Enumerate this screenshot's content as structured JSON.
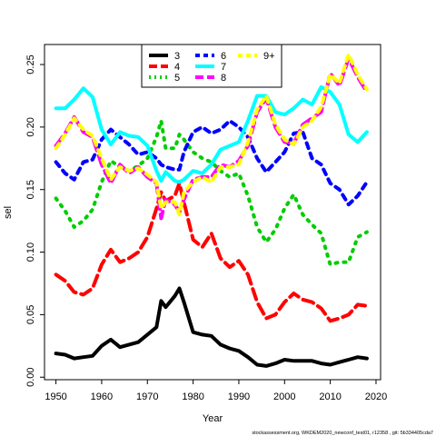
{
  "chart_data": {
    "type": "line",
    "title": "",
    "xlabel": "Year",
    "ylabel": "sel",
    "xlim": [
      1947.5,
      2021
    ],
    "ylim": [
      -0.002,
      0.266
    ],
    "xticks": [
      "1950",
      "1960",
      "1970",
      "1980",
      "1990",
      "2000",
      "2010",
      "2020"
    ],
    "yticks": [
      "0.00",
      "0.05",
      "0.10",
      "0.15",
      "0.20",
      "0.25"
    ],
    "grid": false,
    "legend_position": "top-center",
    "footnote": "stockassessment.org, WKDEM2020_newconf_test01, r12358 , git: 5b334405cda7",
    "series": [
      {
        "name": "3",
        "color": "#000000",
        "dash": "solid",
        "x": [
          1950,
          1952,
          1954,
          1956,
          1958,
          1960,
          1962,
          1964,
          1966,
          1968,
          1970,
          1972,
          1973,
          1974,
          1976,
          1977,
          1978,
          1980,
          1982,
          1984,
          1986,
          1988,
          1990,
          1992,
          1994,
          1996,
          1998,
          2000,
          2002,
          2004,
          2006,
          2008,
          2010,
          2012,
          2014,
          2016,
          2018
        ],
        "y": [
          0.019,
          0.018,
          0.015,
          0.016,
          0.017,
          0.025,
          0.03,
          0.024,
          0.026,
          0.028,
          0.034,
          0.04,
          0.061,
          0.056,
          0.065,
          0.071,
          0.06,
          0.036,
          0.034,
          0.033,
          0.026,
          0.023,
          0.021,
          0.016,
          0.01,
          0.009,
          0.011,
          0.014,
          0.013,
          0.013,
          0.013,
          0.011,
          0.01,
          0.012,
          0.014,
          0.016,
          0.015
        ]
      },
      {
        "name": "4",
        "color": "#ff0000",
        "dash": "long",
        "x": [
          1950,
          1952,
          1954,
          1956,
          1958,
          1960,
          1962,
          1964,
          1966,
          1968,
          1970,
          1972,
          1973,
          1974,
          1976,
          1977,
          1978,
          1980,
          1982,
          1984,
          1986,
          1988,
          1990,
          1992,
          1994,
          1996,
          1998,
          2000,
          2002,
          2004,
          2006,
          2008,
          2010,
          2012,
          2014,
          2016,
          2018
        ],
        "y": [
          0.082,
          0.077,
          0.068,
          0.066,
          0.071,
          0.09,
          0.102,
          0.092,
          0.095,
          0.1,
          0.112,
          0.135,
          0.148,
          0.141,
          0.145,
          0.155,
          0.14,
          0.11,
          0.104,
          0.115,
          0.095,
          0.088,
          0.093,
          0.082,
          0.06,
          0.047,
          0.05,
          0.06,
          0.067,
          0.062,
          0.06,
          0.055,
          0.045,
          0.047,
          0.05,
          0.058,
          0.057
        ]
      },
      {
        "name": "5",
        "color": "#00cd00",
        "dash": "dot",
        "x": [
          1950,
          1952,
          1954,
          1956,
          1958,
          1960,
          1962,
          1964,
          1966,
          1968,
          1970,
          1972,
          1973,
          1974,
          1976,
          1977,
          1978,
          1980,
          1982,
          1984,
          1986,
          1988,
          1990,
          1992,
          1994,
          1996,
          1998,
          2000,
          2002,
          2004,
          2006,
          2008,
          2010,
          2012,
          2014,
          2016,
          2018
        ],
        "y": [
          0.143,
          0.133,
          0.12,
          0.125,
          0.134,
          0.156,
          0.173,
          0.168,
          0.165,
          0.169,
          0.175,
          0.192,
          0.205,
          0.183,
          0.183,
          0.194,
          0.19,
          0.18,
          0.175,
          0.172,
          0.165,
          0.16,
          0.163,
          0.145,
          0.12,
          0.108,
          0.118,
          0.135,
          0.146,
          0.13,
          0.122,
          0.115,
          0.09,
          0.092,
          0.092,
          0.112,
          0.116
        ]
      },
      {
        "name": "6",
        "color": "#0000ff",
        "dash": "dash",
        "x": [
          1950,
          1952,
          1954,
          1956,
          1958,
          1960,
          1962,
          1964,
          1966,
          1968,
          1970,
          1972,
          1973,
          1974,
          1976,
          1977,
          1978,
          1980,
          1982,
          1984,
          1986,
          1988,
          1990,
          1992,
          1994,
          1996,
          1998,
          2000,
          2002,
          2004,
          2006,
          2008,
          2010,
          2012,
          2014,
          2016,
          2018
        ],
        "y": [
          0.172,
          0.163,
          0.158,
          0.172,
          0.174,
          0.19,
          0.198,
          0.192,
          0.186,
          0.178,
          0.18,
          0.175,
          0.17,
          0.168,
          0.166,
          0.166,
          0.18,
          0.196,
          0.2,
          0.195,
          0.198,
          0.205,
          0.2,
          0.192,
          0.175,
          0.164,
          0.172,
          0.18,
          0.195,
          0.196,
          0.175,
          0.17,
          0.155,
          0.15,
          0.138,
          0.145,
          0.156
        ]
      },
      {
        "name": "7",
        "color": "#00ffff",
        "dash": "solid",
        "x": [
          1950,
          1952,
          1954,
          1956,
          1958,
          1960,
          1962,
          1964,
          1966,
          1968,
          1970,
          1972,
          1973,
          1974,
          1976,
          1977,
          1978,
          1980,
          1982,
          1984,
          1986,
          1988,
          1990,
          1992,
          1994,
          1996,
          1998,
          2000,
          2002,
          2004,
          2006,
          2008,
          2010,
          2012,
          2014,
          2016,
          2018
        ],
        "y": [
          0.215,
          0.215,
          0.222,
          0.231,
          0.224,
          0.198,
          0.186,
          0.196,
          0.193,
          0.192,
          0.185,
          0.165,
          0.157,
          0.164,
          0.157,
          0.156,
          0.158,
          0.165,
          0.163,
          0.17,
          0.182,
          0.185,
          0.188,
          0.205,
          0.225,
          0.225,
          0.212,
          0.21,
          0.215,
          0.222,
          0.218,
          0.232,
          0.228,
          0.218,
          0.194,
          0.188,
          0.196
        ]
      },
      {
        "name": "8",
        "color": "#ff00ff",
        "dash": "long",
        "x": [
          1950,
          1952,
          1954,
          1956,
          1958,
          1960,
          1962,
          1964,
          1966,
          1968,
          1970,
          1972,
          1973,
          1974,
          1976,
          1977,
          1978,
          1980,
          1982,
          1984,
          1986,
          1988,
          1990,
          1992,
          1994,
          1996,
          1998,
          2000,
          2002,
          2004,
          2006,
          2008,
          2010,
          2012,
          2014,
          2016,
          2018
        ],
        "y": [
          0.185,
          0.195,
          0.208,
          0.196,
          0.192,
          0.17,
          0.155,
          0.17,
          0.163,
          0.168,
          0.16,
          0.155,
          0.127,
          0.142,
          0.138,
          0.132,
          0.142,
          0.158,
          0.16,
          0.16,
          0.17,
          0.168,
          0.173,
          0.185,
          0.212,
          0.223,
          0.2,
          0.188,
          0.187,
          0.202,
          0.207,
          0.212,
          0.243,
          0.233,
          0.255,
          0.24,
          0.228
        ]
      },
      {
        "name": "9+",
        "color": "#ffff00",
        "dash": "dash",
        "x": [
          1950,
          1952,
          1954,
          1956,
          1958,
          1960,
          1962,
          1964,
          1966,
          1968,
          1970,
          1972,
          1973,
          1974,
          1976,
          1977,
          1978,
          1980,
          1982,
          1984,
          1986,
          1988,
          1990,
          1992,
          1994,
          1996,
          1998,
          2000,
          2002,
          2004,
          2006,
          2008,
          2010,
          2012,
          2014,
          2016,
          2018
        ],
        "y": [
          0.183,
          0.194,
          0.207,
          0.198,
          0.193,
          0.175,
          0.158,
          0.168,
          0.165,
          0.167,
          0.162,
          0.156,
          0.135,
          0.14,
          0.14,
          0.13,
          0.148,
          0.156,
          0.16,
          0.156,
          0.168,
          0.168,
          0.17,
          0.188,
          0.214,
          0.225,
          0.202,
          0.19,
          0.186,
          0.2,
          0.205,
          0.216,
          0.242,
          0.235,
          0.258,
          0.242,
          0.23
        ]
      }
    ]
  }
}
